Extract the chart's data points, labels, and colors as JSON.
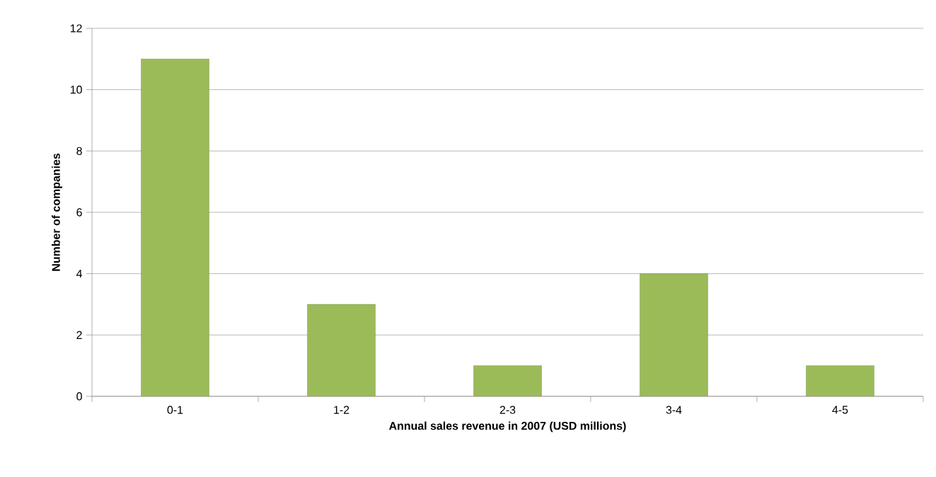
{
  "chart_data": {
    "type": "bar",
    "xlabel": "Annual sales revenue in 2007 (USD millions)",
    "ylabel": "Number of companies",
    "categories": [
      "0-1",
      "1-2",
      "2-3",
      "3-4",
      "4-5"
    ],
    "values": [
      11,
      3,
      1,
      4,
      1
    ],
    "color": "#9bbb59",
    "ylim": [
      0,
      12
    ],
    "yticks": [
      0,
      2,
      4,
      6,
      8,
      10,
      12
    ],
    "grid": "y"
  }
}
